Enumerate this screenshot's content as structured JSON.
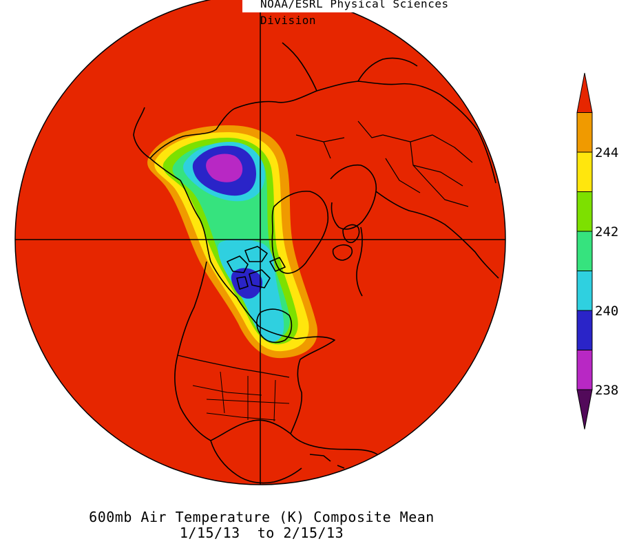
{
  "credit": "NOAA/ESRL Physical Sciences Division",
  "title": {
    "line1": "600mb Air Temperature (K) Composite Mean",
    "line2": "1/15/13  to 2/15/13"
  },
  "colorbar": {
    "bins": [
      {
        "color": "#e62600"
      },
      {
        "color": "#f09a00"
      },
      {
        "color": "#ffe60d"
      },
      {
        "color": "#7de000"
      },
      {
        "color": "#36e37e"
      },
      {
        "color": "#2fd0e0"
      },
      {
        "color": "#2a24c8"
      },
      {
        "color": "#b828c4"
      },
      {
        "color": "#520a5a"
      }
    ],
    "tick_labels": [
      "244",
      "242",
      "240",
      "238"
    ]
  },
  "chart_data": {
    "type": "heatmap",
    "projection": "north-polar-stereographic",
    "variable": "600mb Air Temperature (K) Composite Mean",
    "dates": "1/15/13 to 2/15/13",
    "levels": [
      238,
      238.5,
      239,
      239.5,
      240,
      240.5,
      241,
      241.5,
      242,
      242.5,
      243,
      243.5,
      244,
      244.5,
      245
    ],
    "colorbar_ticks": [
      244,
      242,
      240,
      238
    ],
    "background_value": "above 245",
    "cold_core": "Arctic north of Alaska (below 239 K)",
    "secondary_minimum": "Canadian Arctic Archipelago (about 239.5 K)"
  }
}
